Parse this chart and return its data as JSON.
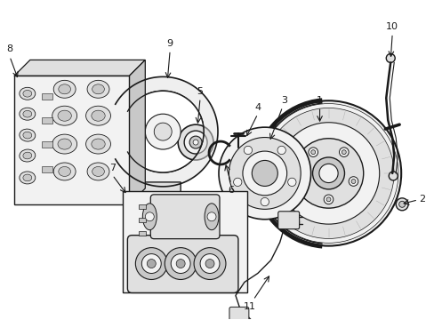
{
  "background_color": "#ffffff",
  "line_color": "#1a1a1a",
  "gray1": "#f2f2f2",
  "gray2": "#e0e0e0",
  "gray3": "#c8c8c8",
  "gray4": "#aaaaaa",
  "figsize": [
    4.89,
    3.6
  ],
  "dpi": 100
}
